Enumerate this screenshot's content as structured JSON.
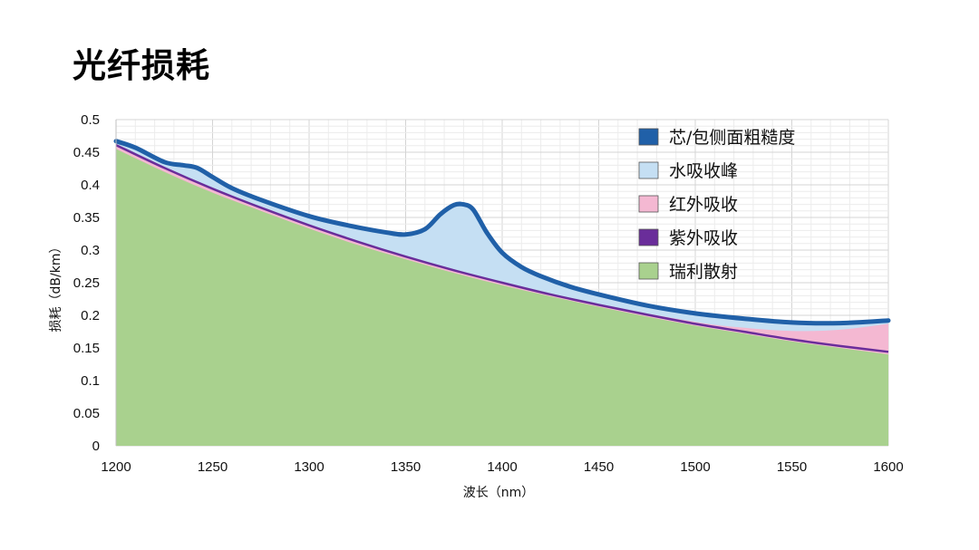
{
  "page": {
    "title": "光纤损耗"
  },
  "chart_data": {
    "type": "area",
    "xlabel": "波长（nm）",
    "ylabel": "损耗（dB/km）",
    "xlim": [
      1200,
      1600
    ],
    "ylim": [
      0,
      0.5
    ],
    "xticks": [
      1200,
      1250,
      1300,
      1350,
      1400,
      1450,
      1500,
      1550,
      1600
    ],
    "yticks": [
      0,
      0.05,
      0.1,
      0.15,
      0.2,
      0.25,
      0.3,
      0.35,
      0.4,
      0.45,
      0.5
    ],
    "grid": true,
    "legend_position": "top-right",
    "colors": {
      "rayleigh": "#a9d18e",
      "ir": "#f4b8d2",
      "water": "#c5dff3",
      "core": "#2060a8",
      "uv": "#6a2d9a"
    },
    "series": [
      {
        "name": "瑞利散射",
        "key": "rayleigh",
        "style": "fill",
        "x": [
          1200,
          1225,
          1250,
          1275,
          1300,
          1325,
          1350,
          1375,
          1400,
          1425,
          1450,
          1475,
          1500,
          1525,
          1550,
          1575,
          1600
        ],
        "values": [
          0.455,
          0.42,
          0.388,
          0.36,
          0.333,
          0.308,
          0.286,
          0.265,
          0.246,
          0.229,
          0.213,
          0.198,
          0.184,
          0.172,
          0.16,
          0.15,
          0.14
        ]
      },
      {
        "name": "紫外吸收",
        "key": "uv",
        "style": "line",
        "x": [
          1200,
          1225,
          1250,
          1275,
          1300,
          1325,
          1350,
          1375,
          1400,
          1425,
          1450,
          1475,
          1500,
          1525,
          1550,
          1575,
          1600
        ],
        "values": [
          0.461,
          0.426,
          0.394,
          0.365,
          0.338,
          0.313,
          0.29,
          0.269,
          0.25,
          0.232,
          0.216,
          0.201,
          0.187,
          0.175,
          0.163,
          0.153,
          0.144
        ]
      },
      {
        "name": "红外吸收",
        "key": "ir",
        "style": "fill",
        "x": [
          1200,
          1250,
          1300,
          1350,
          1400,
          1450,
          1500,
          1525,
          1550,
          1575,
          1600
        ],
        "values": [
          0.462,
          0.395,
          0.339,
          0.291,
          0.251,
          0.217,
          0.19,
          0.181,
          0.176,
          0.178,
          0.187
        ]
      },
      {
        "name": "水吸收峰",
        "key": "water",
        "style": "fill",
        "x": [
          1200,
          1210,
          1225,
          1235,
          1242,
          1250,
          1260,
          1275,
          1300,
          1320,
          1340,
          1350,
          1360,
          1368,
          1375,
          1380,
          1385,
          1392,
          1400,
          1410,
          1420,
          1435,
          1450,
          1475,
          1500,
          1525,
          1550,
          1575,
          1600
        ],
        "values": [
          0.465,
          0.455,
          0.433,
          0.428,
          0.424,
          0.41,
          0.393,
          0.375,
          0.35,
          0.336,
          0.325,
          0.322,
          0.33,
          0.353,
          0.367,
          0.368,
          0.36,
          0.325,
          0.294,
          0.272,
          0.258,
          0.242,
          0.23,
          0.213,
          0.201,
          0.193,
          0.187,
          0.186,
          0.19
        ]
      },
      {
        "name": "芯/包侧面粗糙度",
        "key": "core",
        "style": "line",
        "x": [
          1200,
          1210,
          1225,
          1235,
          1242,
          1250,
          1260,
          1275,
          1300,
          1320,
          1340,
          1350,
          1360,
          1368,
          1375,
          1380,
          1385,
          1392,
          1400,
          1410,
          1420,
          1435,
          1450,
          1475,
          1500,
          1525,
          1550,
          1575,
          1600
        ],
        "values": [
          0.467,
          0.457,
          0.435,
          0.43,
          0.426,
          0.412,
          0.395,
          0.377,
          0.352,
          0.338,
          0.327,
          0.324,
          0.332,
          0.355,
          0.369,
          0.37,
          0.362,
          0.327,
          0.296,
          0.274,
          0.26,
          0.244,
          0.232,
          0.215,
          0.203,
          0.195,
          0.189,
          0.188,
          0.192
        ]
      }
    ],
    "legend": [
      {
        "label": "芯/包侧面粗糙度",
        "key": "core"
      },
      {
        "label": "水吸收峰",
        "key": "water"
      },
      {
        "label": "红外吸收",
        "key": "ir"
      },
      {
        "label": "紫外吸收",
        "key": "uv"
      },
      {
        "label": "瑞利散射",
        "key": "rayleigh"
      }
    ]
  }
}
